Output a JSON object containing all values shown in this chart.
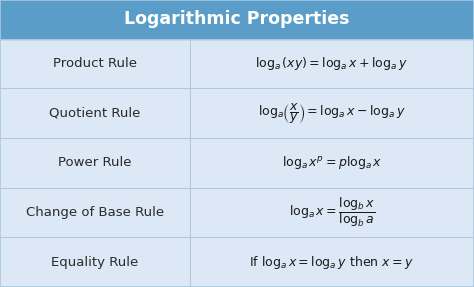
{
  "title": "Logarithmic Properties",
  "title_bg": "#5b9dc9",
  "title_color": "#ffffff",
  "header_fontsize": 12.5,
  "row_bg": "#dce8f5",
  "border_color": "#a8c8e0",
  "rule_color": "#2a2a2a",
  "formula_color": "#1a1a1a",
  "divider_color": "#b0c8dc",
  "col_split": 0.4,
  "rows": [
    {
      "rule": "Product Rule",
      "formula": "$\\log_{a}(xy) = \\log_{a}x+\\log_{a}y$"
    },
    {
      "rule": "Quotient Rule",
      "formula": "$\\log_{a}\\!\\left(\\dfrac{x}{y}\\right) = \\log_{a}x-\\log_{a}y$"
    },
    {
      "rule": "Power Rule",
      "formula": "$\\log_{a}x^{p} = p\\log_{a}x$"
    },
    {
      "rule": "Change of Base Rule",
      "formula": "$\\log_{a}x = \\dfrac{\\log_{b}x}{\\log_{b}a}$"
    },
    {
      "rule": "Equality Rule",
      "formula": "$\\mathrm{If}\\ \\log_{a}x = \\log_{a}y\\ \\mathrm{then}\\ x = y$"
    }
  ],
  "rule_fontsize": 9.5,
  "formula_fontsize": 9.0
}
